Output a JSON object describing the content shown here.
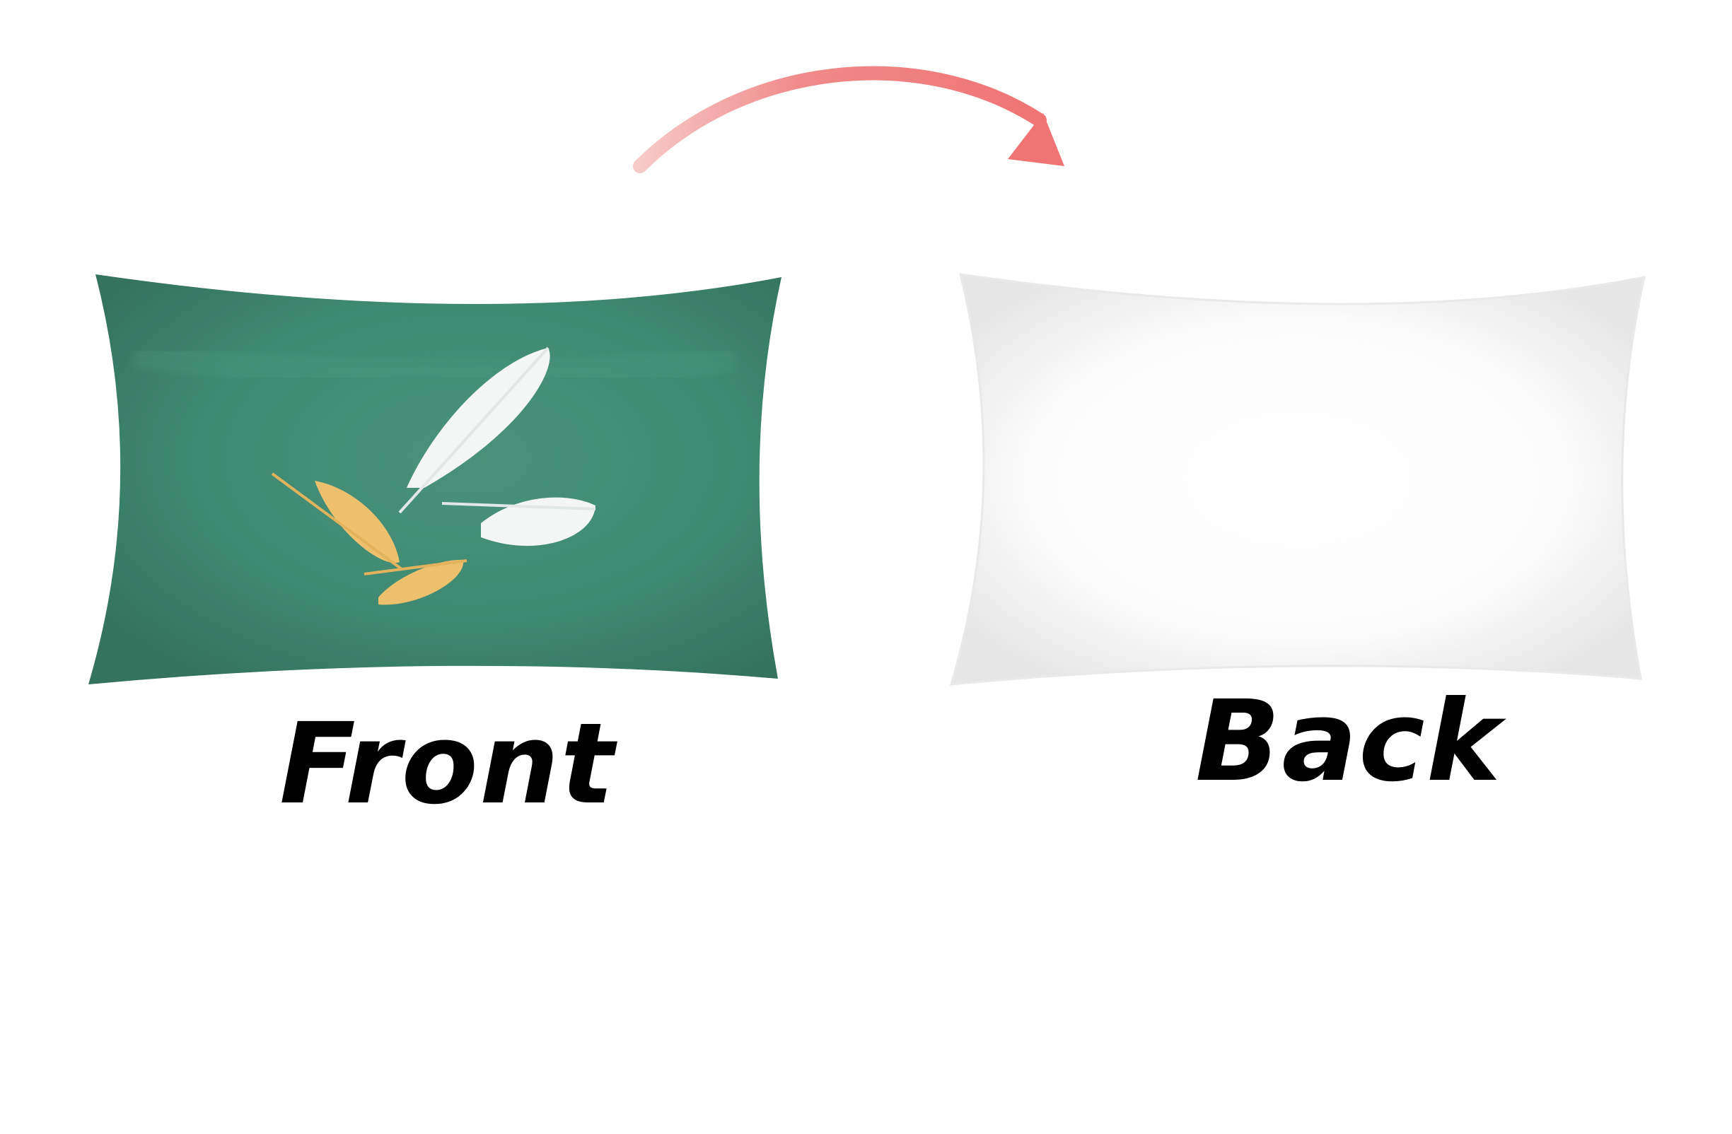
{
  "labels": {
    "front": "Front",
    "back": "Back"
  },
  "colors": {
    "background": "#ffffff",
    "front_pillow": "#3f8a72",
    "back_pillow": "#f4f4f4",
    "arrow": "#f07a7a",
    "feather_white": "#f4f6f6",
    "feather_gold": "#edc06e",
    "label_text": "#000000"
  },
  "scene": {
    "front_pillow_pattern": "feathers",
    "front_feathers": {
      "white": 2,
      "gold": 2
    },
    "back_pillow_pattern": "plain",
    "arrow_direction": "front-to-back"
  }
}
